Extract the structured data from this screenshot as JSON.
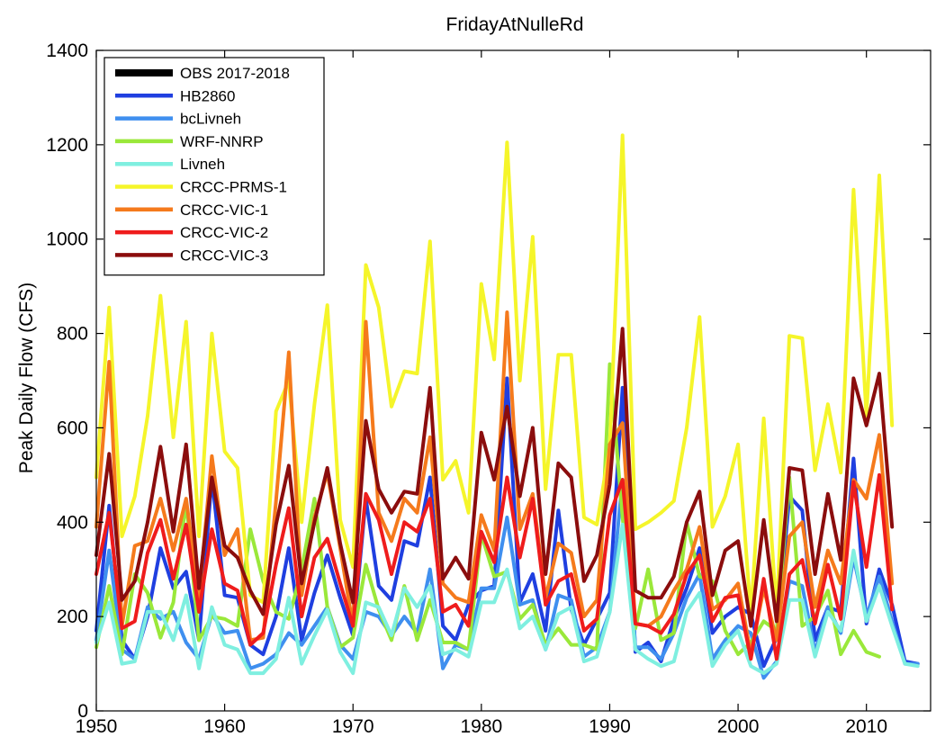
{
  "chart_data": {
    "type": "line",
    "title": "FridayAtNulleRd",
    "xlabel": "",
    "ylabel": "Peak Daily Flow (CFS)",
    "xlim": [
      1950,
      2015
    ],
    "ylim": [
      0,
      1400
    ],
    "xticks": [
      1950,
      1960,
      1970,
      1980,
      1990,
      2000,
      2010
    ],
    "yticks": [
      0,
      200,
      400,
      600,
      800,
      1000,
      1200,
      1400
    ],
    "grid": false,
    "legend_position": "top-left",
    "series": [
      {
        "name": "OBS 2017-2018",
        "color": "#000000",
        "start": 1950,
        "values": []
      },
      {
        "name": "HB2860",
        "color": "#1f3fe0",
        "start": 1950,
        "values": [
          170,
          435,
          150,
          110,
          200,
          345,
          260,
          295,
          150,
          495,
          245,
          240,
          140,
          120,
          200,
          345,
          150,
          250,
          330,
          240,
          160,
          450,
          265,
          235,
          360,
          350,
          495,
          180,
          150,
          225,
          255,
          265,
          705,
          230,
          290,
          170,
          425,
          215,
          140,
          195,
          250,
          685,
          125,
          145,
          105,
          195,
          260,
          345,
          165,
          200,
          220,
          205,
          95,
          155,
          455,
          425,
          150,
          220,
          210,
          535,
          185,
          300,
          225,
          105,
          100
        ]
      },
      {
        "name": "bcLivneh",
        "color": "#3f8fef",
        "start": 1950,
        "values": [
          150,
          340,
          130,
          110,
          220,
          195,
          210,
          145,
          110,
          205,
          165,
          170,
          90,
          100,
          120,
          165,
          140,
          180,
          220,
          140,
          110,
          210,
          200,
          160,
          200,
          165,
          300,
          90,
          140,
          130,
          260,
          260,
          410,
          225,
          235,
          130,
          245,
          235,
          115,
          135,
          210,
          490,
          135,
          135,
          110,
          165,
          240,
          290,
          110,
          150,
          180,
          165,
          70,
          105,
          275,
          265,
          125,
          220,
          165,
          325,
          200,
          285,
          190,
          100,
          100
        ]
      },
      {
        "name": "WRF-NNRP",
        "color": "#9ae83a",
        "start": 1950,
        "values": [
          135,
          265,
          120,
          290,
          250,
          155,
          230,
          445,
          150,
          200,
          195,
          180,
          385,
          275,
          210,
          195,
          300,
          450,
          220,
          135,
          155,
          310,
          215,
          150,
          265,
          150,
          235,
          145,
          145,
          130,
          375,
          285,
          295,
          195,
          225,
          140,
          175,
          140,
          140,
          130,
          735,
          410,
          175,
          300,
          150,
          165,
          400,
          285,
          275,
          170,
          120,
          145,
          190,
          170,
          495,
          180,
          200,
          255,
          120,
          170,
          125,
          115
        ]
      },
      {
        "name": "Livneh",
        "color": "#7fefe0",
        "start": 1950,
        "values": [
          145,
          230,
          100,
          105,
          210,
          210,
          150,
          245,
          90,
          220,
          140,
          130,
          80,
          80,
          110,
          240,
          100,
          160,
          215,
          125,
          80,
          230,
          220,
          160,
          260,
          220,
          265,
          120,
          130,
          115,
          230,
          230,
          300,
          175,
          200,
          130,
          205,
          220,
          105,
          115,
          210,
          395,
          130,
          110,
          95,
          105,
          210,
          250,
          95,
          140,
          170,
          95,
          80,
          100,
          235,
          235,
          115,
          210,
          170,
          340,
          190,
          265,
          180,
          100,
          95
        ]
      },
      {
        "name": "CRCC-PRMS-1",
        "color": "#f5f52a",
        "start": 1950,
        "values": [
          495,
          855,
          370,
          455,
          625,
          880,
          580,
          825,
          370,
          800,
          550,
          515,
          245,
          230,
          635,
          700,
          400,
          650,
          860,
          405,
          305,
          945,
          855,
          645,
          720,
          715,
          995,
          490,
          530,
          420,
          905,
          745,
          1205,
          700,
          1005,
          470,
          755,
          755,
          410,
          395,
          560,
          1220,
          385,
          400,
          420,
          445,
          600,
          835,
          390,
          455,
          565,
          205,
          620,
          205,
          795,
          790,
          510,
          650,
          505,
          1105,
          625,
          1135,
          605
        ]
      },
      {
        "name": "CRCC-VIC-1",
        "color": "#f57a1c",
        "start": 1950,
        "values": [
          390,
          740,
          180,
          350,
          360,
          450,
          340,
          450,
          240,
          540,
          330,
          385,
          150,
          155,
          445,
          760,
          245,
          410,
          505,
          345,
          180,
          825,
          420,
          360,
          450,
          420,
          580,
          270,
          240,
          230,
          415,
          340,
          845,
          385,
          460,
          240,
          355,
          335,
          200,
          235,
          565,
          610,
          185,
          180,
          200,
          255,
          300,
          390,
          215,
          235,
          270,
          120,
          260,
          150,
          370,
          400,
          220,
          340,
          270,
          490,
          450,
          585,
          270
        ]
      },
      {
        "name": "CRCC-VIC-2",
        "color": "#ef1c1c",
        "start": 1950,
        "values": [
          290,
          420,
          175,
          190,
          335,
          405,
          280,
          395,
          210,
          385,
          270,
          255,
          140,
          165,
          310,
          430,
          200,
          325,
          365,
          270,
          180,
          460,
          405,
          290,
          400,
          380,
          450,
          210,
          225,
          180,
          380,
          315,
          495,
          325,
          450,
          225,
          275,
          290,
          170,
          195,
          415,
          490,
          185,
          180,
          165,
          205,
          290,
          330,
          190,
          240,
          245,
          110,
          280,
          110,
          290,
          320,
          185,
          310,
          195,
          485,
          305,
          500,
          215
        ]
      },
      {
        "name": "CRCC-VIC-3",
        "color": "#8b0d0d",
        "start": 1950,
        "values": [
          330,
          545,
          235,
          275,
          400,
          560,
          380,
          565,
          260,
          495,
          350,
          325,
          255,
          205,
          395,
          520,
          270,
          400,
          515,
          355,
          230,
          615,
          470,
          420,
          465,
          460,
          685,
          280,
          325,
          280,
          590,
          490,
          645,
          455,
          600,
          290,
          525,
          495,
          275,
          330,
          480,
          810,
          255,
          240,
          240,
          285,
          400,
          465,
          245,
          340,
          360,
          180,
          405,
          190,
          515,
          510,
          290,
          460,
          320,
          705,
          605,
          715,
          390
        ]
      }
    ]
  }
}
